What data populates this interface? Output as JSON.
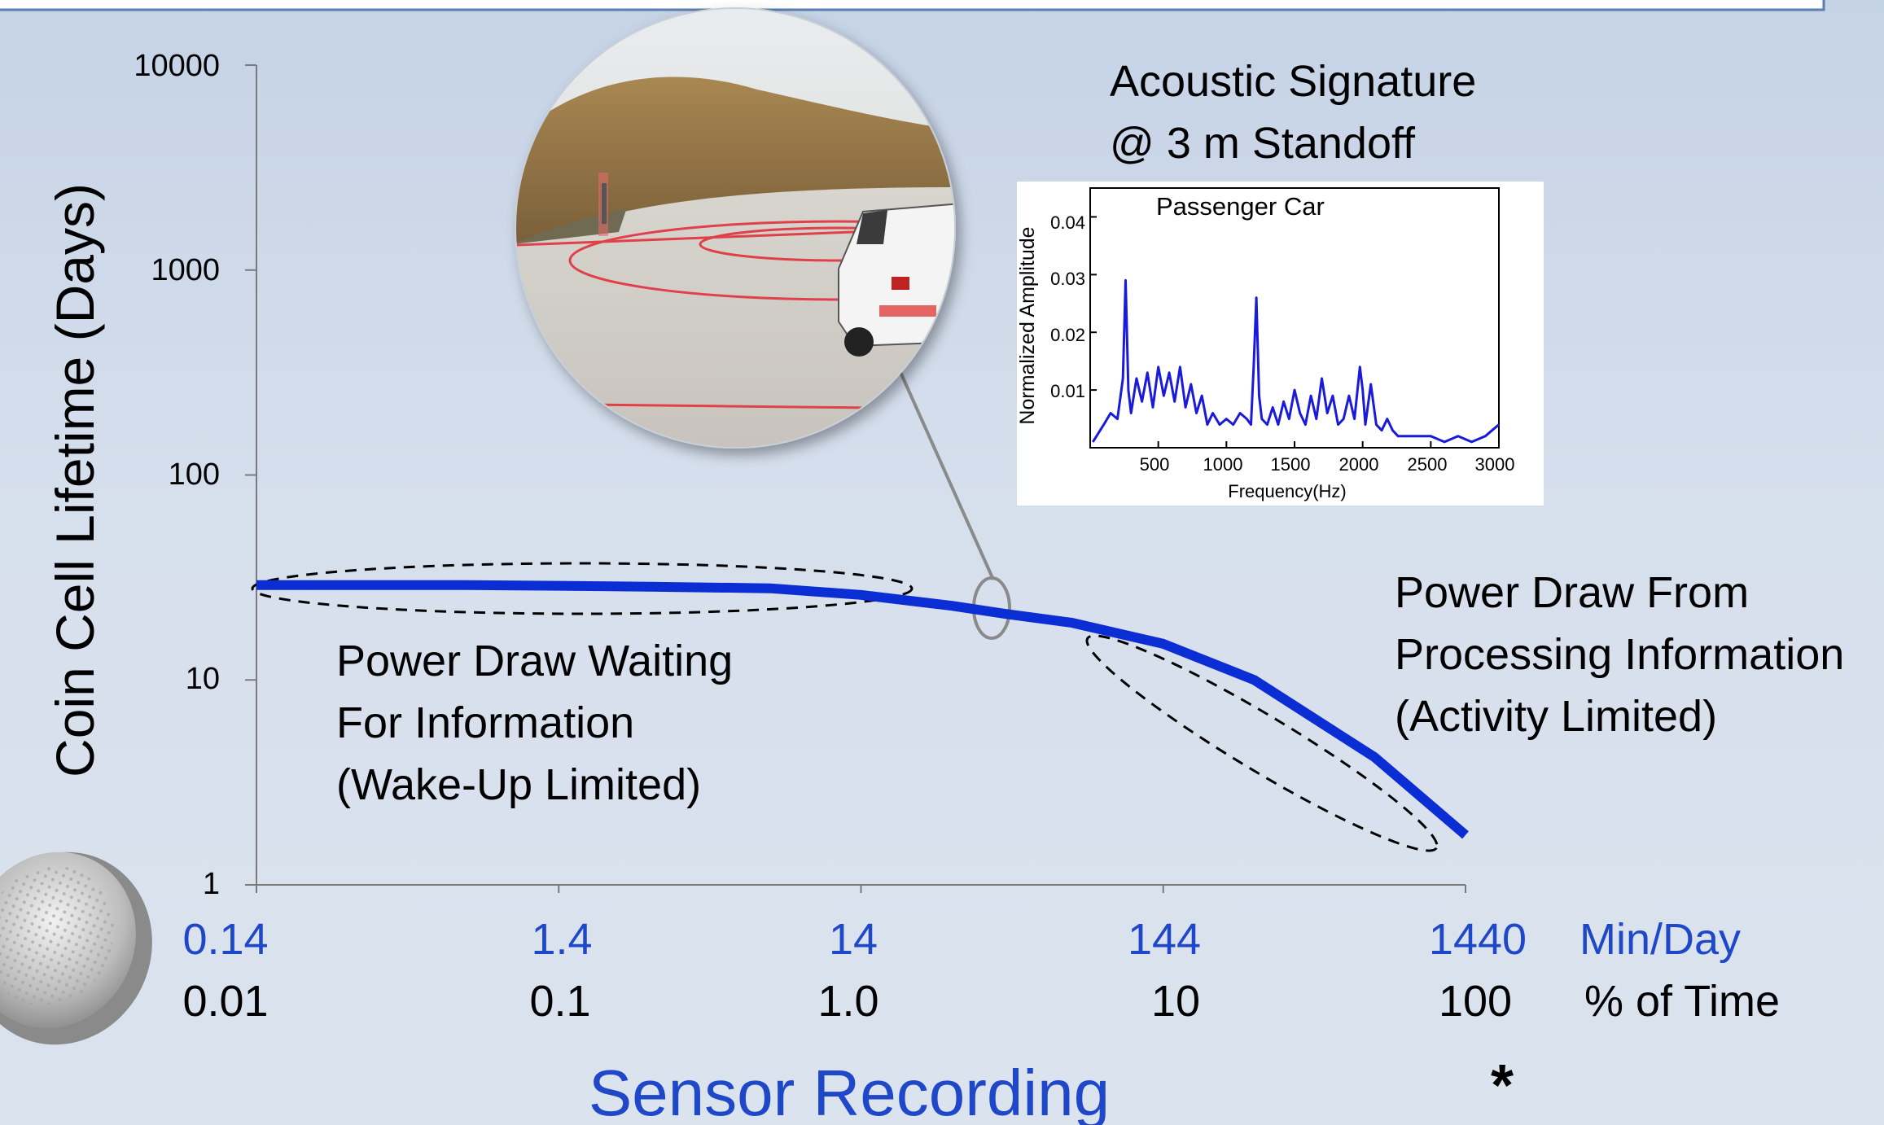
{
  "colors": {
    "background": "#d3dcea",
    "curve": "#0a2ed4",
    "axis_blue_text": "#1f48c8",
    "axis_black_text": "#000000",
    "title_blue": "#1f48c8",
    "inset_line": "#1a1adb"
  },
  "chart_data": [
    {
      "type": "line",
      "ylabel": "Coin Cell Lifetime (Days)",
      "xlabel": "Sensor Recording",
      "yscale": "log",
      "ylim": [
        1,
        10000
      ],
      "yticks": [
        "1",
        "10",
        "100",
        "1000",
        "10000"
      ],
      "x_min_per_day_ticks": [
        "0.14",
        "1.4",
        "14",
        "144",
        "1440"
      ],
      "x_min_per_day_unit": "Min/Day",
      "x_percent_time_ticks": [
        "0.01",
        "0.1",
        "1.0",
        "10",
        "100"
      ],
      "x_percent_time_unit": "% of Time",
      "series": [
        {
          "x_percent_time": [
            0.01,
            0.02,
            0.05,
            0.1,
            0.2,
            0.5,
            1.0,
            2.0,
            3.0,
            5.0,
            10,
            20,
            50,
            100
          ],
          "y_days": [
            29,
            29,
            29,
            28.8,
            28.5,
            28,
            26,
            23,
            21,
            19,
            15,
            10,
            4.2,
            1.75
          ]
        }
      ],
      "annotations": [
        {
          "lines": [
            "Power Draw Waiting",
            "For Information",
            "(Wake-Up Limited)"
          ]
        },
        {
          "lines": [
            "Power Draw From",
            "Processing Information",
            "(Activity Limited)"
          ]
        },
        {
          "lines": [
            "Acoustic Signature",
            "@ 3 m Standoff"
          ]
        },
        {
          "text": "*"
        }
      ]
    },
    {
      "type": "line",
      "title": "Passenger Car",
      "xlabel": "Frequency(Hz)",
      "ylabel": "Normalized Amplitude",
      "xlim": [
        0,
        3000
      ],
      "ylim": [
        0,
        0.045
      ],
      "xticks": [
        "500",
        "1000",
        "1500",
        "2000",
        "2500",
        "3000"
      ],
      "yticks": [
        "0.01",
        "0.02",
        "0.03",
        "0.04"
      ],
      "series": [
        {
          "x": [
            20,
            100,
            150,
            200,
            240,
            260,
            280,
            300,
            340,
            380,
            420,
            460,
            500,
            540,
            580,
            620,
            660,
            700,
            740,
            780,
            820,
            860,
            900,
            950,
            1000,
            1050,
            1100,
            1150,
            1180,
            1200,
            1220,
            1240,
            1260,
            1300,
            1340,
            1380,
            1420,
            1460,
            1500,
            1540,
            1580,
            1620,
            1660,
            1700,
            1740,
            1780,
            1820,
            1860,
            1900,
            1940,
            1980,
            2000,
            2020,
            2060,
            2100,
            2140,
            2180,
            2220,
            2260,
            2300,
            2400,
            2500,
            2600,
            2700,
            2800,
            2900,
            2950,
            3000
          ],
          "y": [
            0.001,
            0.004,
            0.006,
            0.005,
            0.012,
            0.029,
            0.01,
            0.006,
            0.012,
            0.008,
            0.013,
            0.007,
            0.014,
            0.009,
            0.013,
            0.008,
            0.014,
            0.007,
            0.011,
            0.006,
            0.009,
            0.004,
            0.006,
            0.004,
            0.005,
            0.004,
            0.006,
            0.005,
            0.004,
            0.014,
            0.026,
            0.009,
            0.005,
            0.004,
            0.007,
            0.004,
            0.008,
            0.005,
            0.01,
            0.006,
            0.004,
            0.009,
            0.005,
            0.012,
            0.006,
            0.009,
            0.004,
            0.005,
            0.009,
            0.005,
            0.014,
            0.01,
            0.004,
            0.011,
            0.004,
            0.003,
            0.005,
            0.003,
            0.002,
            0.002,
            0.002,
            0.002,
            0.001,
            0.002,
            0.001,
            0.002,
            0.003,
            0.004
          ]
        }
      ]
    }
  ]
}
